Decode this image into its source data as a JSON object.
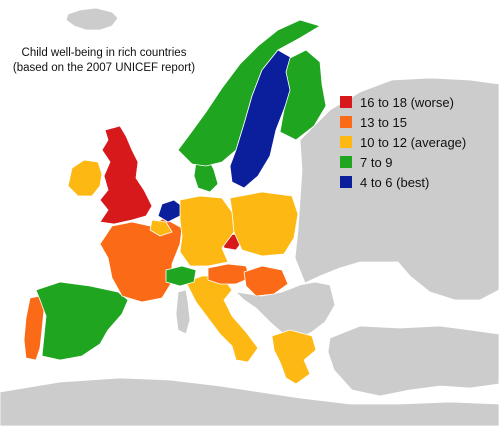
{
  "title": {
    "line1": "Child well-being in rich countries",
    "line2": "(based on the 2007 UNICEF report)"
  },
  "legend": [
    {
      "label": "16 to 18  (worse)",
      "color": "#d7191c"
    },
    {
      "label": "13 to 15",
      "color": "#fb6a16"
    },
    {
      "label": "10 to 12 (average)",
      "color": "#fdb813"
    },
    {
      "label": "7 to 9",
      "color": "#1fa51f"
    },
    {
      "label": "4 to 6 (best)",
      "color": "#0b1f9c"
    }
  ],
  "colors": {
    "no_data": "#cccccc",
    "background": "#ffffff"
  },
  "regions": [
    {
      "id": "united-kingdom",
      "tier": 0
    },
    {
      "id": "ireland",
      "tier": 2
    },
    {
      "id": "portugal",
      "tier": 1
    },
    {
      "id": "spain",
      "tier": 3
    },
    {
      "id": "france",
      "tier": 1
    },
    {
      "id": "italy",
      "tier": 2
    },
    {
      "id": "austria",
      "tier": 1
    },
    {
      "id": "hungary",
      "tier": 1
    },
    {
      "id": "czech-republic",
      "tier": 0
    },
    {
      "id": "switzerland",
      "tier": 3
    },
    {
      "id": "netherlands",
      "tier": 4
    },
    {
      "id": "belgium",
      "tier": 2
    },
    {
      "id": "germany",
      "tier": 2
    },
    {
      "id": "poland",
      "tier": 2
    },
    {
      "id": "denmark",
      "tier": 3
    },
    {
      "id": "norway",
      "tier": 3
    },
    {
      "id": "sweden",
      "tier": 4
    },
    {
      "id": "finland",
      "tier": 3
    },
    {
      "id": "greece",
      "tier": 2
    }
  ]
}
